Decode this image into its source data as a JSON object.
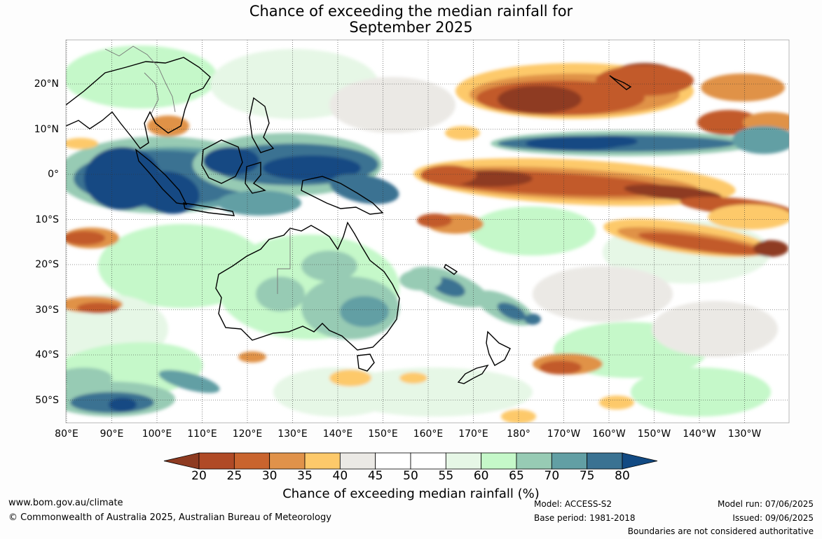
{
  "title_line1": "Chance of exceeding the median rainfall for",
  "title_line2": "September 2025",
  "map": {
    "region": "Australia, Indian Ocean and Pacific Ocean",
    "longitude_labels": [
      "80°E",
      "90°E",
      "100°E",
      "110°E",
      "120°E",
      "130°E",
      "140°E",
      "150°E",
      "160°E",
      "170°E",
      "180°",
      "170°W",
      "160°W",
      "150°W",
      "140°W",
      "130°W"
    ],
    "latitude_labels": [
      "20°N",
      "10°N",
      "0°",
      "10°S",
      "20°S",
      "30°S",
      "40°S",
      "50°S"
    ],
    "colors": {
      "dry_strong": "#8e3b21",
      "dry": "#c25a2a",
      "dry_light": "#e09246",
      "dry_weak": "#fdc96a",
      "neutral_grey": "#ebe9e5",
      "neutral": "#ffffff",
      "wet_weak": "#e6f7e6",
      "wet_light": "#c5f8c9",
      "wet": "#97cbb4",
      "wet_mid": "#629fa4",
      "wet_strong": "#3a7292",
      "wet_extreme": "#124a83",
      "coastline": "#000000"
    }
  },
  "colorbar": {
    "ticks": [
      "20",
      "25",
      "30",
      "35",
      "40",
      "45",
      "50",
      "55",
      "60",
      "65",
      "70",
      "75",
      "80"
    ],
    "colors": [
      "#8e3b21",
      "#b04a26",
      "#c9642e",
      "#e0924a",
      "#fdc96a",
      "#ebe9e5",
      "#ffffff",
      "#ffffff",
      "#e6f7e6",
      "#c5f8c9",
      "#97cbb4",
      "#629fa4",
      "#3a7292",
      "#124a83"
    ],
    "label": "Chance of exceeding median rainfall (%)"
  },
  "footer": {
    "website": "www.bom.gov.au/climate",
    "copyright": "© Commonwealth of Australia 2025, Australian Bureau of Meteorology",
    "model": "Model: ACCESS-S2",
    "base_period": "Base period: 1981-2018",
    "model_run": "Model run: 07/06/2025",
    "issued": "Issued: 09/06/2025",
    "disclaimer": "Boundaries are not considered authoritative"
  }
}
